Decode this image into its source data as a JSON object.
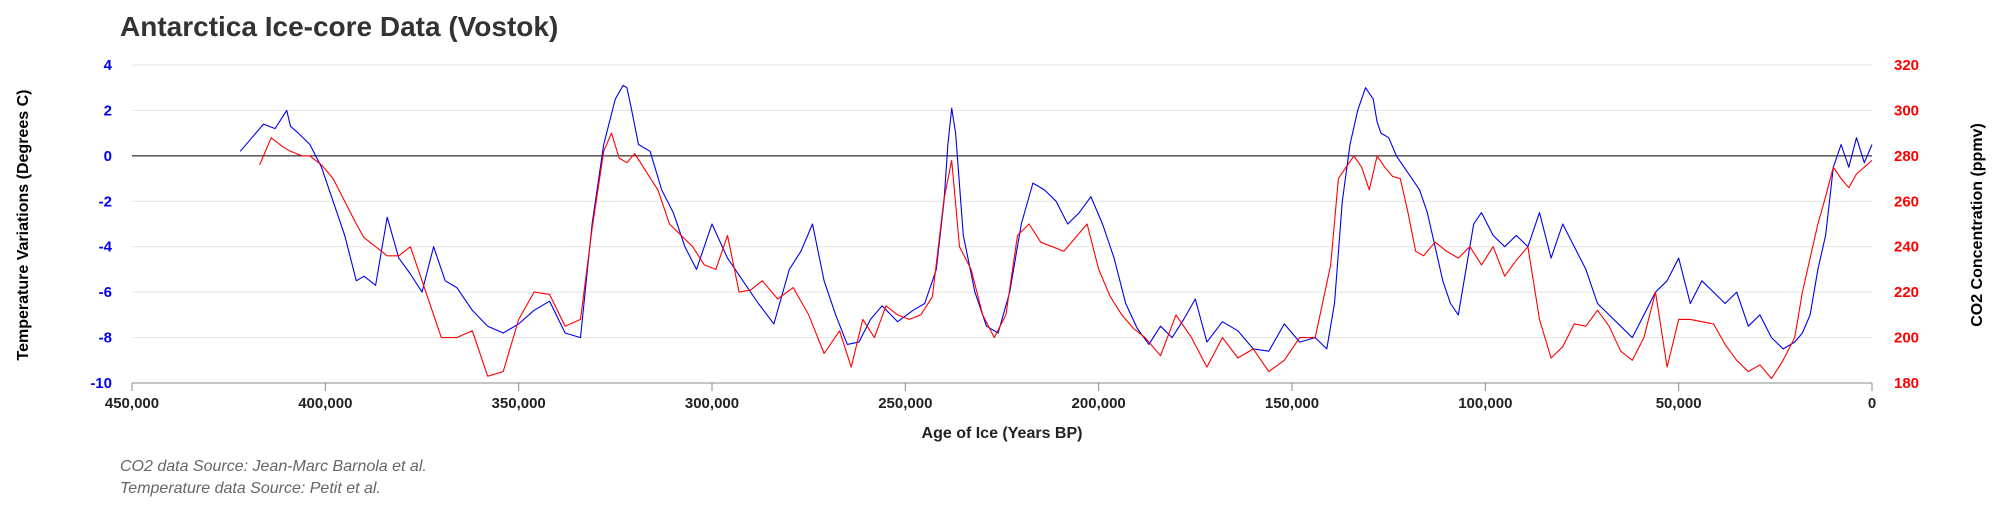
{
  "chart_data": {
    "type": "line",
    "title": "Antarctica Ice-core Data (Vostok)",
    "xlabel": "Age of Ice (Years BP)",
    "ylabel_left": "Temperature Variations (Degrees C)",
    "ylabel_right": "CO2 Concentration (ppmv)",
    "xlim": [
      450000,
      0
    ],
    "ylim_left": [
      -10,
      4
    ],
    "ylim_right": [
      180,
      320
    ],
    "x_ticks": [
      "450,000",
      "400,000",
      "350,000",
      "300,000",
      "250,000",
      "200,000",
      "150,000",
      "100,000",
      "50,000",
      "0"
    ],
    "y_left_ticks": [
      "4",
      "2",
      "0",
      "-2",
      "-4",
      "-6",
      "-8",
      "-10"
    ],
    "y_right_ticks": [
      "320",
      "300",
      "280",
      "260",
      "240",
      "220",
      "200",
      "180"
    ],
    "grid": true,
    "sources": [
      "CO2 data Source: Jean-Marc Barnola et al.",
      "Temperature data Source: Petit et al."
    ],
    "colors": {
      "temperature": "#0000ee",
      "co2": "#ff0000",
      "title": "#333333",
      "source": "#666666"
    },
    "series": [
      {
        "axis": "left",
        "color": "#0000ee",
        "x": [
          422000,
          419000,
          416000,
          413000,
          410000,
          409000,
          407000,
          404000,
          401000,
          398000,
          395000,
          392000,
          390000,
          387000,
          384000,
          381000,
          378000,
          375000,
          372000,
          369000,
          366000,
          362000,
          358000,
          354000,
          350000,
          346000,
          342000,
          338000,
          334000,
          331000,
          328000,
          325000,
          323000,
          322000,
          321000,
          319000,
          316000,
          313000,
          310000,
          307000,
          304000,
          300000,
          296000,
          292000,
          288000,
          284000,
          280000,
          277000,
          274000,
          271000,
          268000,
          265000,
          262000,
          259000,
          256000,
          252000,
          248000,
          245000,
          242000,
          240000,
          239000,
          238000,
          237000,
          235000,
          232000,
          229000,
          226000,
          223000,
          220000,
          217000,
          214000,
          211000,
          208000,
          205000,
          202000,
          199000,
          196000,
          193000,
          190000,
          187000,
          184000,
          181000,
          178000,
          175000,
          172000,
          168000,
          164000,
          160000,
          156000,
          152000,
          148000,
          144000,
          141000,
          139000,
          137000,
          135000,
          133000,
          131000,
          129000,
          128000,
          127000,
          125000,
          123000,
          121000,
          119000,
          117000,
          115000,
          113000,
          111000,
          109000,
          107000,
          105000,
          103000,
          101000,
          98000,
          95000,
          92000,
          89000,
          86000,
          83000,
          80000,
          77000,
          74000,
          71000,
          68000,
          65000,
          62000,
          59000,
          56000,
          53000,
          50000,
          47000,
          44000,
          41000,
          38000,
          35000,
          32000,
          29000,
          26000,
          23000,
          20000,
          18000,
          16000,
          14000,
          12000,
          11000,
          10000,
          9000,
          8000,
          6000,
          4000,
          2000,
          0
        ],
        "y": [
          0.2,
          0.8,
          1.4,
          1.2,
          2.0,
          1.3,
          1.0,
          0.5,
          -0.5,
          -2.0,
          -3.5,
          -5.5,
          -5.3,
          -5.7,
          -2.7,
          -4.5,
          -5.2,
          -6.0,
          -4.0,
          -5.5,
          -5.8,
          -6.8,
          -7.5,
          -7.8,
          -7.4,
          -6.8,
          -6.4,
          -7.8,
          -8.0,
          -3.0,
          0.5,
          2.5,
          3.1,
          3.0,
          2.2,
          0.5,
          0.2,
          -1.5,
          -2.5,
          -4.0,
          -5.0,
          -3.0,
          -4.5,
          -5.5,
          -6.5,
          -7.4,
          -5.0,
          -4.2,
          -3.0,
          -5.5,
          -7.0,
          -8.3,
          -8.2,
          -7.2,
          -6.6,
          -7.3,
          -6.8,
          -6.5,
          -5.0,
          -2.0,
          0.5,
          2.1,
          1.0,
          -3.5,
          -6.0,
          -7.5,
          -7.8,
          -6.0,
          -3.0,
          -1.2,
          -1.5,
          -2.0,
          -3.0,
          -2.5,
          -1.8,
          -3.0,
          -4.5,
          -6.5,
          -7.6,
          -8.3,
          -7.5,
          -8.0,
          -7.2,
          -6.3,
          -8.2,
          -7.3,
          -7.7,
          -8.5,
          -8.6,
          -7.4,
          -8.2,
          -8.0,
          -8.5,
          -6.5,
          -2.0,
          0.5,
          2.0,
          3.0,
          2.5,
          1.5,
          1.0,
          0.8,
          0.0,
          -0.5,
          -1.0,
          -1.5,
          -2.5,
          -4.0,
          -5.5,
          -6.5,
          -7.0,
          -5.0,
          -3.0,
          -2.5,
          -3.5,
          -4.0,
          -3.5,
          -4.0,
          -2.5,
          -4.5,
          -3.0,
          -4.0,
          -5.0,
          -6.5,
          -7.0,
          -7.5,
          -8.0,
          -7.0,
          -6.0,
          -5.5,
          -4.5,
          -6.5,
          -5.5,
          -6.0,
          -6.5,
          -6.0,
          -7.5,
          -7.0,
          -8.0,
          -8.5,
          -8.2,
          -7.8,
          -7.0,
          -5.0,
          -3.5,
          -2.0,
          -0.5,
          0.0,
          0.5,
          -0.5,
          0.8,
          -0.3,
          0.5
        ]
      },
      {
        "axis": "right",
        "color": "#ff0000",
        "x": [
          417000,
          414000,
          411000,
          409000,
          406000,
          404000,
          401000,
          398000,
          395000,
          392000,
          390000,
          387000,
          384000,
          381000,
          378000,
          374000,
          370000,
          366000,
          362000,
          358000,
          354000,
          350000,
          346000,
          342000,
          338000,
          334000,
          331000,
          328000,
          326000,
          324000,
          322000,
          320000,
          317000,
          314000,
          311000,
          308000,
          305000,
          302000,
          299000,
          296000,
          293000,
          290000,
          287000,
          283000,
          279000,
          275000,
          271000,
          267000,
          264000,
          261000,
          258000,
          255000,
          252000,
          249000,
          246000,
          243000,
          240000,
          238000,
          236000,
          233000,
          230000,
          227000,
          224000,
          221000,
          218000,
          215000,
          212000,
          209000,
          206000,
          203000,
          200000,
          197000,
          194000,
          191000,
          188000,
          184000,
          180000,
          176000,
          172000,
          168000,
          164000,
          160000,
          156000,
          152000,
          148000,
          144000,
          140000,
          138000,
          136000,
          134000,
          132000,
          130000,
          128000,
          126000,
          124000,
          122000,
          120000,
          118000,
          116000,
          113000,
          110000,
          107000,
          104000,
          101000,
          98000,
          95000,
          92000,
          89000,
          86000,
          83000,
          80000,
          77000,
          74000,
          71000,
          68000,
          65000,
          62000,
          59000,
          56000,
          53000,
          50000,
          47000,
          44000,
          41000,
          38000,
          35000,
          32000,
          29000,
          26000,
          23000,
          20000,
          18000,
          16000,
          14000,
          12000,
          10000,
          8000,
          6000,
          4000,
          2000,
          0
        ],
        "y": [
          276,
          288,
          284,
          282,
          280,
          280,
          276,
          270,
          260,
          250,
          244,
          240,
          236,
          236,
          240,
          220,
          200,
          200,
          203,
          183,
          185,
          208,
          220,
          219,
          205,
          208,
          248,
          282,
          290,
          279,
          277,
          281,
          273,
          265,
          250,
          245,
          240,
          232,
          230,
          245,
          220,
          221,
          225,
          217,
          222,
          210,
          193,
          203,
          187,
          208,
          200,
          214,
          210,
          208,
          210,
          218,
          261,
          278,
          240,
          230,
          210,
          200,
          210,
          245,
          250,
          242,
          240,
          238,
          244,
          250,
          230,
          218,
          210,
          204,
          200,
          192,
          210,
          200,
          187,
          200,
          191,
          195,
          185,
          190,
          200,
          200,
          232,
          270,
          275,
          280,
          275,
          265,
          280,
          275,
          271,
          270,
          255,
          238,
          236,
          242,
          238,
          235,
          240,
          232,
          240,
          227,
          234,
          240,
          208,
          191,
          196,
          206,
          205,
          212,
          205,
          194,
          190,
          200,
          220,
          187,
          208,
          208,
          207,
          206,
          197,
          190,
          185,
          188,
          182,
          190,
          200,
          220,
          235,
          250,
          262,
          275,
          270,
          266,
          272,
          275,
          278
        ]
      }
    ]
  }
}
